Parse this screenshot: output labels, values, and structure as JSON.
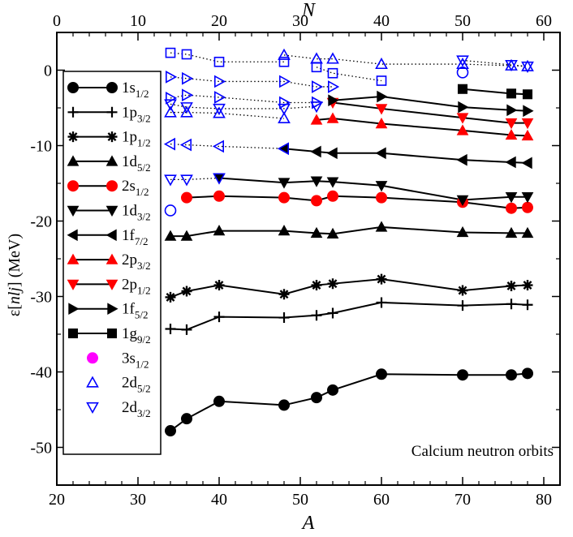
{
  "chart_data": {
    "type": "line",
    "annotation": "Calcium neutron orbits",
    "xlabel": "A",
    "x2label": "N",
    "ylabel_prefix": "ε[",
    "ylabel_var": "nlj",
    "ylabel_suffix": "] (MeV)",
    "xlim": [
      20,
      82
    ],
    "ylim": [
      -55,
      5
    ],
    "x_ticks": [
      20,
      30,
      40,
      50,
      60,
      70,
      80
    ],
    "x2_ticks": [
      0,
      10,
      20,
      30,
      40,
      50,
      60
    ],
    "y_ticks": [
      0,
      -10,
      -20,
      -30,
      -40,
      -50
    ],
    "series": [
      {
        "name": "1s1/2",
        "label": "1s",
        "sub": "1/2",
        "marker": "circle",
        "color": "#000000",
        "fill": true,
        "line": "solid",
        "points": [
          [
            34,
            -47.8
          ],
          [
            36,
            -46.2
          ],
          [
            40,
            -43.9
          ],
          [
            48,
            -44.4
          ],
          [
            52,
            -43.4
          ],
          [
            54,
            -42.4
          ],
          [
            60,
            -40.3
          ],
          [
            70,
            -40.4
          ],
          [
            76,
            -40.4
          ],
          [
            78,
            -40.2
          ]
        ]
      },
      {
        "name": "1p3/2",
        "label": "1p",
        "sub": "3/2",
        "marker": "plus",
        "color": "#000000",
        "fill": true,
        "line": "solid",
        "points": [
          [
            34,
            -34.3
          ],
          [
            36,
            -34.4
          ],
          [
            40,
            -32.7
          ],
          [
            48,
            -32.8
          ],
          [
            52,
            -32.5
          ],
          [
            54,
            -32.2
          ],
          [
            60,
            -30.8
          ],
          [
            70,
            -31.2
          ],
          [
            76,
            -31.0
          ],
          [
            78,
            -31.1
          ]
        ]
      },
      {
        "name": "1p1/2",
        "label": "1p",
        "sub": "1/2",
        "marker": "star",
        "color": "#000000",
        "fill": true,
        "line": "solid",
        "points": [
          [
            34,
            -30.1
          ],
          [
            36,
            -29.3
          ],
          [
            40,
            -28.5
          ],
          [
            48,
            -29.7
          ],
          [
            52,
            -28.5
          ],
          [
            54,
            -28.3
          ],
          [
            60,
            -27.7
          ],
          [
            70,
            -29.2
          ],
          [
            76,
            -28.6
          ],
          [
            78,
            -28.5
          ]
        ]
      },
      {
        "name": "1d5/2",
        "label": "1d",
        "sub": "5/2",
        "marker": "triangle-up",
        "color": "#000000",
        "fill": true,
        "line": "solid",
        "points": [
          [
            34,
            -22.0
          ],
          [
            36,
            -22.0
          ],
          [
            40,
            -21.3
          ],
          [
            48,
            -21.3
          ],
          [
            52,
            -21.6
          ],
          [
            54,
            -21.7
          ],
          [
            60,
            -20.8
          ],
          [
            70,
            -21.5
          ],
          [
            76,
            -21.6
          ],
          [
            78,
            -21.6
          ]
        ]
      },
      {
        "name": "2s1/2",
        "label": "2s",
        "sub": "1/2",
        "marker": "circle",
        "color": "#ff0000",
        "fill": true,
        "line": "solid",
        "points": [
          [
            36,
            -16.9
          ],
          [
            40,
            -16.7
          ],
          [
            48,
            -16.9
          ],
          [
            52,
            -17.3
          ],
          [
            54,
            -16.7
          ],
          [
            60,
            -16.9
          ],
          [
            70,
            -17.5
          ],
          [
            76,
            -18.3
          ],
          [
            78,
            -18.2
          ]
        ]
      },
      {
        "name": "1d3/2",
        "label": "1d",
        "sub": "3/2",
        "marker": "triangle-down",
        "color": "#000000",
        "fill": true,
        "line": "solid",
        "points": [
          [
            40,
            -14.3
          ],
          [
            48,
            -14.9
          ],
          [
            52,
            -14.7
          ],
          [
            54,
            -14.8
          ],
          [
            60,
            -15.3
          ],
          [
            70,
            -17.2
          ],
          [
            76,
            -16.8
          ],
          [
            78,
            -16.8
          ]
        ]
      },
      {
        "name": "1f7/2",
        "label": "1f",
        "sub": "7/2",
        "marker": "triangle-left",
        "color": "#000000",
        "fill": true,
        "line": "solid",
        "points": [
          [
            48,
            -10.4
          ],
          [
            52,
            -10.8
          ],
          [
            54,
            -11.0
          ],
          [
            60,
            -11.0
          ],
          [
            70,
            -11.9
          ],
          [
            76,
            -12.2
          ],
          [
            78,
            -12.3
          ]
        ]
      },
      {
        "name": "2p3/2",
        "label": "2p",
        "sub": "3/2",
        "marker": "triangle-up",
        "color": "#ff0000",
        "fill": true,
        "line": "solid",
        "points": [
          [
            52,
            -6.6
          ],
          [
            54,
            -6.4
          ],
          [
            60,
            -7.1
          ],
          [
            70,
            -8.0
          ],
          [
            76,
            -8.6
          ],
          [
            78,
            -8.7
          ]
        ]
      },
      {
        "name": "2p1/2",
        "label": "2p",
        "sub": "1/2",
        "marker": "triangle-down",
        "color": "#ff0000",
        "fill": true,
        "line": "solid",
        "points": [
          [
            54,
            -4.3
          ],
          [
            60,
            -5.1
          ],
          [
            70,
            -6.3
          ],
          [
            76,
            -7.0
          ],
          [
            78,
            -7.0
          ]
        ]
      },
      {
        "name": "1f5/2",
        "label": "1f",
        "sub": "5/2",
        "marker": "triangle-right",
        "color": "#000000",
        "fill": true,
        "line": "solid",
        "points": [
          [
            54,
            -4.0
          ],
          [
            60,
            -3.5
          ],
          [
            70,
            -4.9
          ],
          [
            76,
            -5.3
          ],
          [
            78,
            -5.4
          ]
        ]
      },
      {
        "name": "1g9/2",
        "label": "1g",
        "sub": "9/2",
        "marker": "square",
        "color": "#000000",
        "fill": true,
        "line": "solid",
        "points": [
          [
            70,
            -2.5
          ],
          [
            76,
            -3.1
          ],
          [
            78,
            -3.2
          ]
        ]
      },
      {
        "name": "3s1/2",
        "label": "3s",
        "sub": "1/2",
        "marker": "circle",
        "color": "#ff00ff",
        "fill": true,
        "line": "none",
        "points": []
      },
      {
        "name": "2d5/2",
        "label": "2d",
        "sub": "5/2",
        "marker": "triangle-up",
        "color": "#0000ff",
        "fill": false,
        "line": "dotted",
        "points": [
          [
            48,
            2.0
          ],
          [
            52,
            1.5
          ],
          [
            54,
            1.5
          ],
          [
            60,
            0.8
          ],
          [
            70,
            0.8
          ],
          [
            76,
            0.6
          ],
          [
            78,
            0.5
          ]
        ]
      },
      {
        "name": "2d3/2",
        "label": "2d",
        "sub": "3/2",
        "marker": "triangle-down",
        "color": "#0000ff",
        "fill": false,
        "line": "dotted",
        "points": [
          [
            70,
            1.3
          ],
          [
            76,
            0.7
          ],
          [
            78,
            0.5
          ]
        ]
      }
    ],
    "unbound_series": [
      {
        "name": "unbound-circle",
        "marker": "circle",
        "color": "#0000ff",
        "fill": false,
        "line": "none",
        "points": [
          [
            34,
            -18.6
          ],
          [
            70,
            -0.3
          ]
        ]
      },
      {
        "name": "unbound-square-upper",
        "marker": "square",
        "color": "#0000ff",
        "fill": false,
        "line": "dotted",
        "points": [
          [
            34,
            2.3
          ],
          [
            36,
            2.1
          ],
          [
            40,
            1.1
          ],
          [
            48,
            1.1
          ]
        ]
      },
      {
        "name": "unbound-square-lower",
        "marker": "square",
        "color": "#0000ff",
        "fill": false,
        "line": "dotted",
        "points": [
          [
            52,
            0.4
          ],
          [
            54,
            -0.4
          ],
          [
            60,
            -1.4
          ]
        ]
      },
      {
        "name": "unbound-right-a",
        "marker": "triangle-right",
        "color": "#0000ff",
        "fill": false,
        "line": "dotted",
        "points": [
          [
            34,
            -0.9
          ],
          [
            36,
            -1.1
          ],
          [
            40,
            -1.5
          ],
          [
            48,
            -1.5
          ],
          [
            52,
            -2.2
          ],
          [
            54,
            -2.2
          ]
        ]
      },
      {
        "name": "unbound-right-b",
        "marker": "triangle-right",
        "color": "#0000ff",
        "fill": false,
        "line": "dotted",
        "points": [
          [
            34,
            -3.7
          ],
          [
            36,
            -3.3
          ],
          [
            40,
            -3.6
          ],
          [
            48,
            -4.3
          ],
          [
            52,
            -4.3
          ]
        ]
      },
      {
        "name": "unbound-down-a",
        "marker": "triangle-down",
        "color": "#0000ff",
        "fill": false,
        "line": "dotted",
        "points": [
          [
            34,
            -4.5
          ],
          [
            36,
            -4.9
          ],
          [
            40,
            -5.1
          ],
          [
            48,
            -5.1
          ],
          [
            52,
            -4.8
          ]
        ]
      },
      {
        "name": "unbound-up-a",
        "marker": "triangle-up",
        "color": "#0000ff",
        "fill": false,
        "line": "dotted",
        "points": [
          [
            34,
            -5.6
          ],
          [
            36,
            -5.6
          ],
          [
            40,
            -5.7
          ],
          [
            48,
            -6.4
          ]
        ]
      },
      {
        "name": "unbound-left",
        "marker": "triangle-left",
        "color": "#0000ff",
        "fill": false,
        "line": "dotted",
        "points": [
          [
            34,
            -9.8
          ],
          [
            36,
            -9.9
          ],
          [
            40,
            -10.1
          ],
          [
            48,
            -10.4
          ]
        ]
      },
      {
        "name": "unbound-down-b",
        "marker": "triangle-down",
        "color": "#0000ff",
        "fill": false,
        "line": "dotted",
        "points": [
          [
            34,
            -14.5
          ],
          [
            36,
            -14.5
          ],
          [
            40,
            -14.3
          ]
        ]
      }
    ]
  }
}
